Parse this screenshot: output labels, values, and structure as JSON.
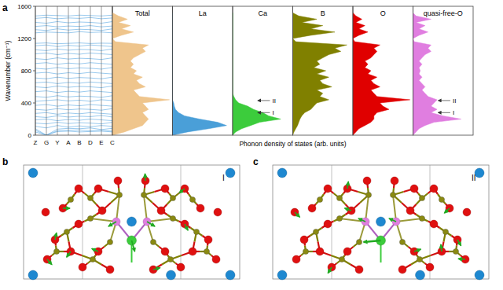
{
  "chart_data": [
    {
      "type": "line",
      "ylabel": "Wavenumber (cm⁻¹)",
      "categories": [
        "Z",
        "G",
        "Y",
        "A",
        "B",
        "D",
        "E",
        "C"
      ],
      "ylim": [
        0,
        1600
      ],
      "yticks": [
        0,
        400,
        800,
        1200,
        1600
      ],
      "color": "#6fb3e6",
      "series": [
        {
          "values": [
            40,
            0,
            45,
            50,
            40,
            45,
            50,
            40
          ]
        },
        {
          "values": [
            60,
            0,
            55,
            60,
            65,
            55,
            60,
            50
          ]
        },
        {
          "values": [
            80,
            0,
            75,
            85,
            80,
            90,
            70,
            85
          ]
        },
        {
          "values": [
            110,
            90,
            120,
            100,
            115,
            105,
            120,
            110
          ]
        },
        {
          "values": [
            150,
            140,
            160,
            145,
            155,
            150,
            140,
            160
          ]
        },
        {
          "values": [
            190,
            200,
            180,
            195,
            185,
            200,
            190,
            180
          ]
        },
        {
          "values": [
            230,
            220,
            240,
            225,
            235,
            230,
            245,
            225
          ]
        },
        {
          "values": [
            270,
            280,
            260,
            275,
            265,
            280,
            270,
            260
          ]
        },
        {
          "values": [
            320,
            310,
            330,
            315,
            325,
            320,
            310,
            330
          ]
        },
        {
          "values": [
            370,
            380,
            360,
            375,
            365,
            380,
            370,
            360
          ]
        },
        {
          "values": [
            420,
            430,
            440,
            425,
            435,
            420,
            440,
            430
          ]
        },
        {
          "values": [
            480,
            470,
            490,
            475,
            485,
            480,
            470,
            490
          ]
        },
        {
          "values": [
            540,
            550,
            530,
            545,
            535,
            550,
            540,
            530
          ]
        },
        {
          "values": [
            600,
            590,
            610,
            595,
            605,
            600,
            590,
            610
          ]
        },
        {
          "values": [
            650,
            660,
            640,
            655,
            645,
            660,
            650,
            640
          ]
        },
        {
          "values": [
            710,
            700,
            720,
            705,
            715,
            710,
            700,
            720
          ]
        },
        {
          "values": [
            770,
            780,
            760,
            775,
            765,
            780,
            770,
            760
          ]
        },
        {
          "values": [
            830,
            820,
            840,
            825,
            835,
            830,
            820,
            840
          ]
        },
        {
          "values": [
            890,
            900,
            880,
            895,
            885,
            900,
            890,
            880
          ]
        },
        {
          "values": [
            950,
            940,
            960,
            945,
            955,
            950,
            940,
            960
          ]
        },
        {
          "values": [
            1010,
            1020,
            1000,
            1015,
            1005,
            1020,
            1010,
            1000
          ]
        },
        {
          "values": [
            1060,
            1050,
            1070,
            1055,
            1065,
            1060,
            1050,
            1070
          ]
        },
        {
          "values": [
            1110,
            1120,
            1100,
            1115,
            1105,
            1120,
            1110,
            1100
          ]
        },
        {
          "values": [
            1140,
            1145,
            1135,
            1140,
            1145,
            1138,
            1142,
            1140
          ]
        },
        {
          "values": [
            1270,
            1280,
            1275,
            1270,
            1285,
            1275,
            1280,
            1270
          ]
        },
        {
          "values": [
            1310,
            1300,
            1320,
            1305,
            1315,
            1310,
            1300,
            1320
          ]
        },
        {
          "values": [
            1350,
            1360,
            1345,
            1355,
            1350,
            1360,
            1345,
            1355
          ]
        },
        {
          "values": [
            1400,
            1390,
            1410,
            1395,
            1405,
            1400,
            1390,
            1410
          ]
        },
        {
          "values": [
            1450,
            1460,
            1445,
            1455,
            1450,
            1460,
            1445,
            1455
          ]
        },
        {
          "values": [
            1480,
            1490,
            1485,
            1480,
            1490,
            1485,
            1480,
            1490
          ]
        }
      ]
    },
    {
      "type": "area",
      "orientation": "horizontal",
      "title": "Total",
      "color": "#efc58c",
      "tick_labels": false,
      "xlim": [
        0,
        1600
      ],
      "ylim": [
        0,
        1
      ],
      "x": [
        0,
        40,
        80,
        120,
        160,
        200,
        240,
        280,
        320,
        360,
        400,
        440,
        480,
        520,
        560,
        600,
        640,
        680,
        720,
        760,
        800,
        840,
        880,
        920,
        960,
        1000,
        1040,
        1080,
        1120,
        1160,
        1200,
        1240,
        1280,
        1320,
        1360,
        1400,
        1440,
        1480,
        1520
      ],
      "values": [
        0,
        0.2,
        0.35,
        0.5,
        0.55,
        0.6,
        0.55,
        0.5,
        0.6,
        0.55,
        0.5,
        0.95,
        0.45,
        0.4,
        0.35,
        0.55,
        0.45,
        0.4,
        0.5,
        0.35,
        0.4,
        0.3,
        0.35,
        0.3,
        0.35,
        0.45,
        0.55,
        0.5,
        0.6,
        0.05,
        0,
        0.15,
        0.35,
        0.15,
        0.3,
        0.1,
        0.25,
        0.1,
        0
      ]
    },
    {
      "type": "area",
      "orientation": "horizontal",
      "title": "La",
      "color": "#4a9fd8",
      "tick_labels": false,
      "xlim": [
        0,
        1600
      ],
      "ylim": [
        0,
        1
      ],
      "x": [
        0,
        40,
        80,
        120,
        160,
        200,
        240,
        280,
        320,
        360,
        400,
        440,
        480,
        520,
        560,
        600,
        640,
        680,
        720,
        760,
        800,
        840,
        880,
        920,
        960,
        1000,
        1040,
        1080,
        1120,
        1160,
        1200,
        1240,
        1280,
        1320,
        1360,
        1400,
        1440,
        1480,
        1520
      ],
      "values": [
        0,
        0.25,
        0.6,
        0.9,
        0.75,
        0.45,
        0.2,
        0.1,
        0.05,
        0.03,
        0.02,
        0,
        0,
        0,
        0,
        0,
        0,
        0,
        0,
        0,
        0,
        0,
        0,
        0,
        0,
        0,
        0,
        0,
        0,
        0,
        0,
        0,
        0,
        0,
        0,
        0,
        0,
        0,
        0
      ]
    },
    {
      "type": "area",
      "orientation": "horizontal",
      "title": "Ca",
      "color": "#3ccc3c",
      "tick_labels": false,
      "xlim": [
        0,
        1600
      ],
      "ylim": [
        0,
        1
      ],
      "x": [
        0,
        40,
        80,
        120,
        160,
        200,
        240,
        280,
        320,
        360,
        400,
        440,
        480,
        520,
        560,
        600,
        640,
        680,
        720,
        760,
        800,
        840,
        880,
        920,
        960,
        1000,
        1040,
        1080,
        1120,
        1160,
        1200,
        1240,
        1280,
        1320,
        1360,
        1400,
        1440,
        1480,
        1520
      ],
      "values": [
        0,
        0.05,
        0.15,
        0.3,
        0.45,
        0.8,
        0.6,
        0.5,
        0.35,
        0.25,
        0.1,
        0.05,
        0.02,
        0,
        0,
        0,
        0,
        0,
        0,
        0,
        0,
        0,
        0,
        0,
        0,
        0,
        0,
        0,
        0,
        0,
        0,
        0,
        0,
        0,
        0,
        0,
        0,
        0,
        0
      ],
      "annotations": [
        {
          "text": "I",
          "value": 280
        },
        {
          "text": "II",
          "value": 430
        }
      ]
    },
    {
      "type": "area",
      "orientation": "horizontal",
      "title": "B",
      "color": "#808000",
      "tick_labels": false,
      "xlim": [
        0,
        1600
      ],
      "ylim": [
        0,
        1
      ],
      "x": [
        0,
        40,
        80,
        120,
        160,
        200,
        240,
        280,
        320,
        360,
        400,
        440,
        480,
        520,
        560,
        600,
        640,
        680,
        720,
        760,
        800,
        840,
        880,
        920,
        960,
        1000,
        1040,
        1080,
        1120,
        1160,
        1200,
        1240,
        1280,
        1320,
        1360,
        1400,
        1440,
        1480,
        1520
      ],
      "values": [
        0,
        0.02,
        0.05,
        0.08,
        0.1,
        0.12,
        0.15,
        0.2,
        0.3,
        0.35,
        0.4,
        0.6,
        0.45,
        0.5,
        0.4,
        0.65,
        0.5,
        0.45,
        0.6,
        0.4,
        0.55,
        0.35,
        0.45,
        0.4,
        0.5,
        0.6,
        0.8,
        0.7,
        0.9,
        0.05,
        0,
        0.3,
        0.7,
        0.3,
        0.5,
        0.15,
        0.4,
        0.1,
        0
      ]
    },
    {
      "type": "area",
      "orientation": "horizontal",
      "title": "O",
      "color": "#e00000",
      "tick_labels": false,
      "xlim": [
        0,
        1600
      ],
      "ylim": [
        0,
        1
      ],
      "x": [
        0,
        40,
        80,
        120,
        160,
        200,
        240,
        280,
        320,
        360,
        400,
        440,
        480,
        520,
        560,
        600,
        640,
        680,
        720,
        760,
        800,
        840,
        880,
        920,
        960,
        1000,
        1040,
        1080,
        1120,
        1160,
        1200,
        1240,
        1280,
        1320,
        1360,
        1400,
        1440,
        1480,
        1520
      ],
      "values": [
        0,
        0.05,
        0.1,
        0.2,
        0.3,
        0.35,
        0.35,
        0.4,
        0.6,
        0.5,
        0.45,
        0.95,
        0.4,
        0.35,
        0.3,
        0.45,
        0.35,
        0.3,
        0.4,
        0.25,
        0.3,
        0.2,
        0.25,
        0.2,
        0.3,
        0.35,
        0.4,
        0.35,
        0.45,
        0.03,
        0,
        0.1,
        0.25,
        0.1,
        0.2,
        0.05,
        0.15,
        0.05,
        0
      ]
    },
    {
      "type": "area",
      "orientation": "horizontal",
      "title": "quasi-free-O",
      "color": "#e07ee0",
      "tick_labels": false,
      "xlim": [
        0,
        1600
      ],
      "ylim": [
        0,
        1
      ],
      "x": [
        0,
        40,
        80,
        120,
        160,
        200,
        240,
        280,
        320,
        360,
        400,
        440,
        480,
        520,
        560,
        600,
        640,
        680,
        720,
        760,
        800,
        840,
        880,
        920,
        960,
        1000,
        1040,
        1080,
        1120,
        1160,
        1200,
        1240,
        1280,
        1320,
        1360,
        1400,
        1440,
        1480,
        1520
      ],
      "values": [
        0,
        0.05,
        0.1,
        0.2,
        0.35,
        0.8,
        0.5,
        0.3,
        0.4,
        0.3,
        0.35,
        0.4,
        0.25,
        0.2,
        0.15,
        0.2,
        0.15,
        0.1,
        0.15,
        0.1,
        0.12,
        0.1,
        0.15,
        0.1,
        0.15,
        0.2,
        0.3,
        0.25,
        0.3,
        0.02,
        0,
        0.1,
        0.25,
        0.1,
        0.2,
        0.05,
        0.3,
        0.05,
        0
      ],
      "annotations": [
        {
          "text": "I",
          "value": 280
        },
        {
          "text": "II",
          "value": 430
        }
      ]
    }
  ],
  "figure": {
    "panel_labels": [
      "a",
      "b",
      "c"
    ],
    "xlabel": "Phonon density of states (arb. units)",
    "structure_labels": [
      "I",
      "II"
    ]
  }
}
